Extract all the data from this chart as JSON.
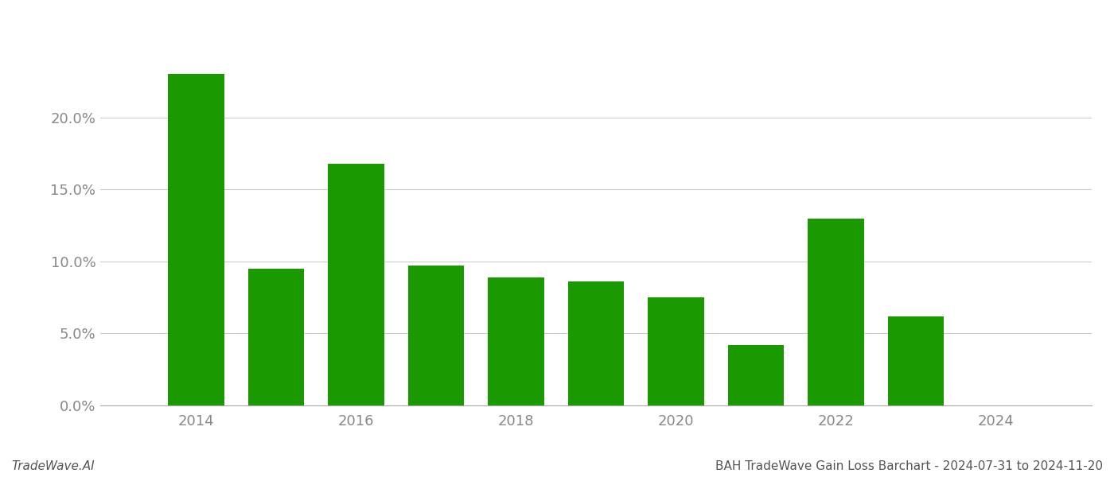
{
  "years": [
    2014,
    2015,
    2016,
    2017,
    2018,
    2019,
    2020,
    2021,
    2022,
    2023
  ],
  "values": [
    0.23,
    0.095,
    0.168,
    0.097,
    0.089,
    0.086,
    0.075,
    0.042,
    0.13,
    0.062
  ],
  "bar_color": "#1a9a00",
  "background_color": "#ffffff",
  "grid_color": "#cccccc",
  "ylim": [
    0,
    0.265
  ],
  "yticks": [
    0.0,
    0.05,
    0.1,
    0.15,
    0.2
  ],
  "xtick_labels": [
    "2014",
    "2016",
    "2018",
    "2020",
    "2022",
    "2024"
  ],
  "xtick_positions": [
    2014,
    2016,
    2018,
    2020,
    2022,
    2024
  ],
  "tick_color": "#888888",
  "tick_fontsize": 13,
  "footer_left": "TradeWave.AI",
  "footer_right": "BAH TradeWave Gain Loss Barchart - 2024-07-31 to 2024-11-20",
  "footer_fontsize": 11
}
